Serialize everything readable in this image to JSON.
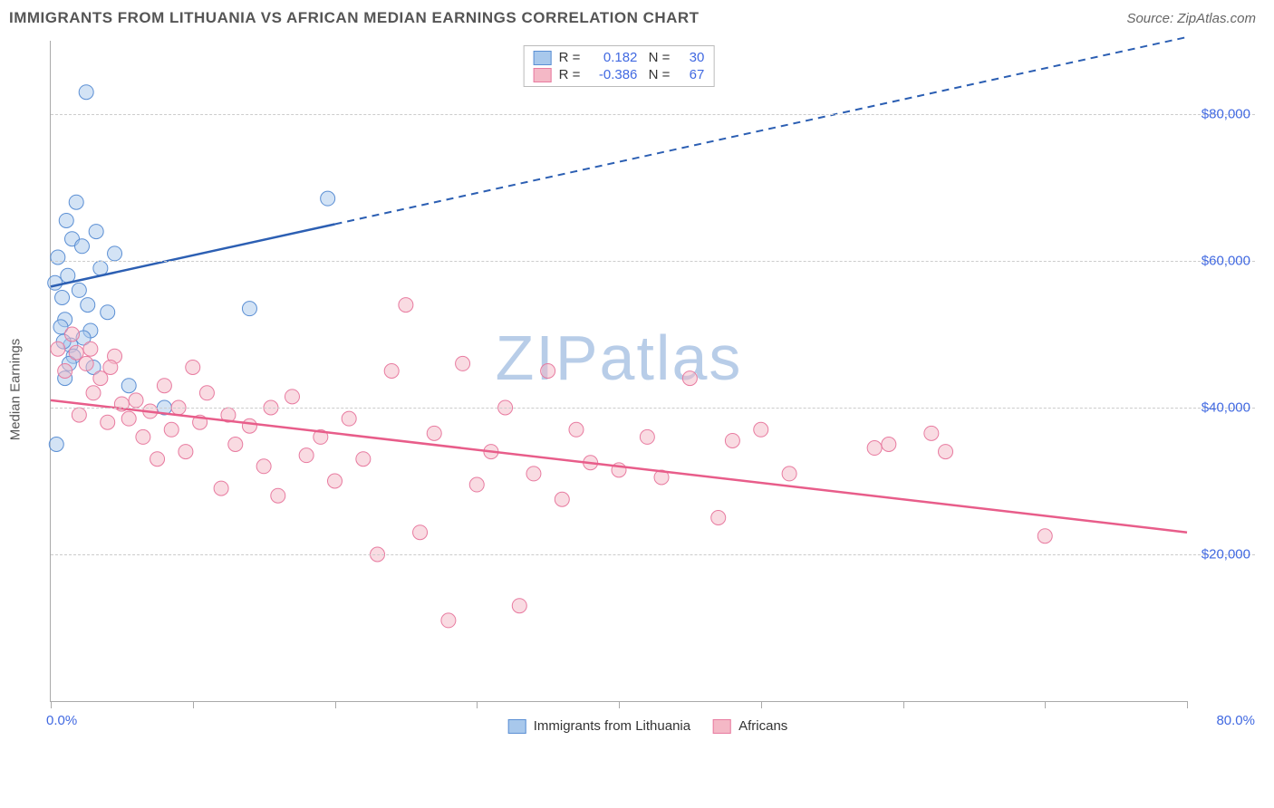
{
  "header": {
    "title": "IMMIGRANTS FROM LITHUANIA VS AFRICAN MEDIAN EARNINGS CORRELATION CHART",
    "source": "Source: ZipAtlas.com"
  },
  "chart": {
    "type": "scatter",
    "y_axis_label": "Median Earnings",
    "xlim": [
      0,
      80
    ],
    "ylim": [
      0,
      90000
    ],
    "x_start_label": "0.0%",
    "x_end_label": "80.0%",
    "x_tick_positions": [
      0,
      10,
      20,
      30,
      40,
      50,
      60,
      70,
      80
    ],
    "y_ticks": [
      {
        "value": 20000,
        "label": "$20,000"
      },
      {
        "value": 40000,
        "label": "$40,000"
      },
      {
        "value": 60000,
        "label": "$60,000"
      },
      {
        "value": 80000,
        "label": "$80,000"
      }
    ],
    "grid_color": "#cccccc",
    "axis_color": "#aaaaaa",
    "background_color": "#ffffff",
    "tick_label_color": "#4169e1",
    "marker_radius": 8,
    "marker_opacity": 0.5,
    "series": [
      {
        "name": "Immigrants from Lithuania",
        "color_fill": "#a8c8ec",
        "color_stroke": "#5b8fd4",
        "r": "0.182",
        "n": "30",
        "regression": {
          "x1": 0,
          "y1": 56500,
          "x2_solid": 20,
          "y2_solid": 65000,
          "x2": 80,
          "y2": 90500
        },
        "line_color": "#2c5fb3",
        "points": [
          [
            0.3,
            57000
          ],
          [
            0.5,
            60500
          ],
          [
            0.8,
            55000
          ],
          [
            1.0,
            52000
          ],
          [
            1.2,
            58000
          ],
          [
            1.4,
            48500
          ],
          [
            1.5,
            63000
          ],
          [
            1.8,
            68000
          ],
          [
            2.0,
            56000
          ],
          [
            2.2,
            62000
          ],
          [
            2.5,
            83000
          ],
          [
            2.8,
            50500
          ],
          [
            3.0,
            45500
          ],
          [
            3.2,
            64000
          ],
          [
            1.0,
            44000
          ],
          [
            3.5,
            59000
          ],
          [
            0.4,
            35000
          ],
          [
            4.0,
            53000
          ],
          [
            4.5,
            61000
          ],
          [
            1.6,
            47000
          ],
          [
            2.3,
            49500
          ],
          [
            1.1,
            65500
          ],
          [
            0.7,
            51000
          ],
          [
            5.5,
            43000
          ],
          [
            8.0,
            40000
          ],
          [
            2.6,
            54000
          ],
          [
            14.0,
            53500
          ],
          [
            19.5,
            68500
          ],
          [
            1.3,
            46000
          ],
          [
            0.9,
            49000
          ]
        ]
      },
      {
        "name": "Africans",
        "color_fill": "#f4b8c6",
        "color_stroke": "#e87ba0",
        "r": "-0.386",
        "n": "67",
        "regression": {
          "x1": 0,
          "y1": 41000,
          "x2_solid": 80,
          "y2_solid": 23000,
          "x2": 80,
          "y2": 23000
        },
        "line_color": "#e85d8a",
        "points": [
          [
            0.5,
            48000
          ],
          [
            1.0,
            45000
          ],
          [
            1.5,
            50000
          ],
          [
            2.0,
            39000
          ],
          [
            2.5,
            46000
          ],
          [
            3.0,
            42000
          ],
          [
            3.5,
            44000
          ],
          [
            4.0,
            38000
          ],
          [
            4.5,
            47000
          ],
          [
            5.0,
            40500
          ],
          [
            5.5,
            38500
          ],
          [
            6.0,
            41000
          ],
          [
            6.5,
            36000
          ],
          [
            7.0,
            39500
          ],
          [
            7.5,
            33000
          ],
          [
            8.0,
            43000
          ],
          [
            8.5,
            37000
          ],
          [
            9.0,
            40000
          ],
          [
            9.5,
            34000
          ],
          [
            10.0,
            45500
          ],
          [
            10.5,
            38000
          ],
          [
            11.0,
            42000
          ],
          [
            12.0,
            29000
          ],
          [
            12.5,
            39000
          ],
          [
            13.0,
            35000
          ],
          [
            14.0,
            37500
          ],
          [
            15.0,
            32000
          ],
          [
            15.5,
            40000
          ],
          [
            16.0,
            28000
          ],
          [
            17.0,
            41500
          ],
          [
            18.0,
            33500
          ],
          [
            19.0,
            36000
          ],
          [
            20.0,
            30000
          ],
          [
            21.0,
            38500
          ],
          [
            22.0,
            33000
          ],
          [
            23.0,
            20000
          ],
          [
            24.0,
            45000
          ],
          [
            25.0,
            54000
          ],
          [
            26.0,
            23000
          ],
          [
            27.0,
            36500
          ],
          [
            28.0,
            11000
          ],
          [
            29.0,
            46000
          ],
          [
            30.0,
            29500
          ],
          [
            31.0,
            34000
          ],
          [
            32.0,
            40000
          ],
          [
            33.0,
            13000
          ],
          [
            34.0,
            31000
          ],
          [
            35.0,
            45000
          ],
          [
            36.0,
            27500
          ],
          [
            37.0,
            37000
          ],
          [
            38.0,
            32500
          ],
          [
            40.0,
            31500
          ],
          [
            42.0,
            36000
          ],
          [
            43.0,
            30500
          ],
          [
            45.0,
            44000
          ],
          [
            47.0,
            25000
          ],
          [
            48.0,
            35500
          ],
          [
            50.0,
            37000
          ],
          [
            52.0,
            31000
          ],
          [
            58.0,
            34500
          ],
          [
            59.0,
            35000
          ],
          [
            62.0,
            36500
          ],
          [
            63.0,
            34000
          ],
          [
            70.0,
            22500
          ],
          [
            1.8,
            47500
          ],
          [
            2.8,
            48000
          ],
          [
            4.2,
            45500
          ]
        ]
      }
    ],
    "watermark": "ZIPatlas",
    "legend_bottom": [
      {
        "label": "Immigrants from Lithuania",
        "fill": "#a8c8ec",
        "stroke": "#5b8fd4"
      },
      {
        "label": "Africans",
        "fill": "#f4b8c6",
        "stroke": "#e87ba0"
      }
    ]
  }
}
